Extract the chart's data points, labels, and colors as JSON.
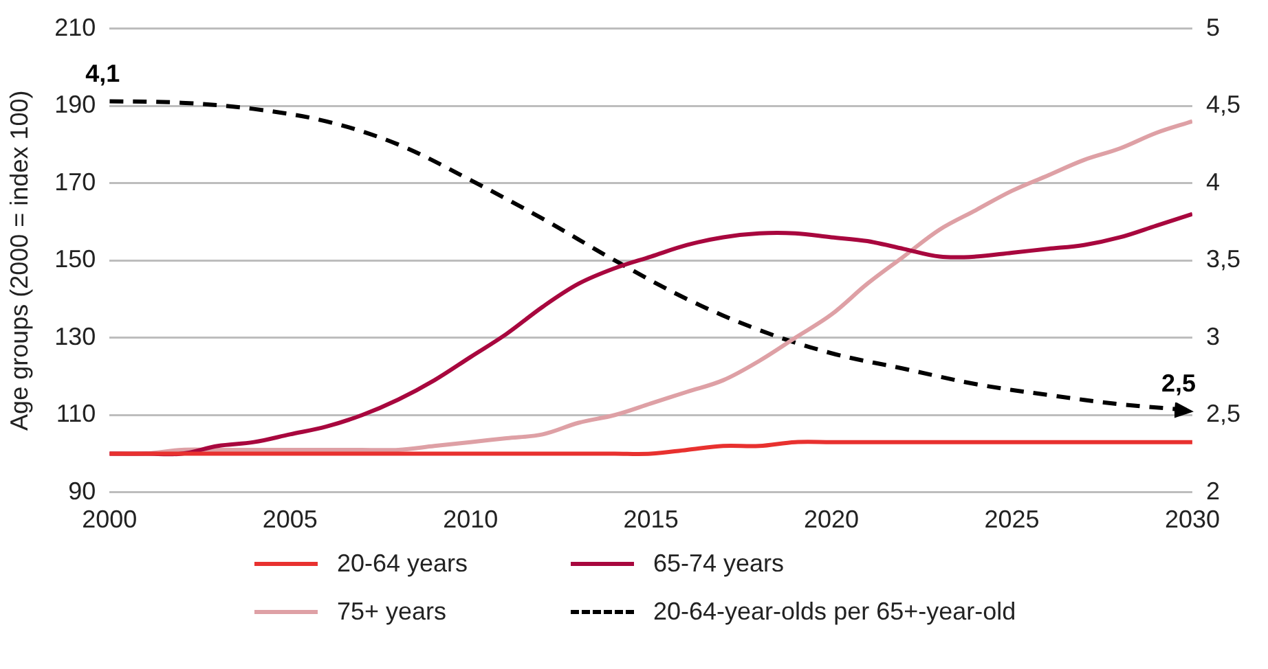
{
  "chart_data": {
    "type": "line",
    "ylabel": "Age groups (2000 = index 100)",
    "x": [
      2000,
      2001,
      2002,
      2003,
      2004,
      2005,
      2006,
      2007,
      2008,
      2009,
      2010,
      2011,
      2012,
      2013,
      2014,
      2015,
      2016,
      2017,
      2018,
      2019,
      2020,
      2021,
      2022,
      2023,
      2024,
      2025,
      2026,
      2027,
      2028,
      2029,
      2030
    ],
    "xlim": [
      2000,
      2030
    ],
    "xticks": [
      2000,
      2005,
      2010,
      2015,
      2020,
      2025,
      2030
    ],
    "ylim": [
      90,
      210
    ],
    "yticks": [
      90,
      110,
      130,
      150,
      170,
      190,
      210
    ],
    "y2lim": [
      2,
      5
    ],
    "y2ticks": [
      2,
      {
        "value": 2.5,
        "label": "2,5"
      },
      3,
      {
        "value": 3.5,
        "label": "3,5"
      },
      4,
      {
        "value": 4.5,
        "label": "4,5"
      },
      5
    ],
    "grid": "y",
    "legend": "bottom",
    "marker": "none",
    "annotations": [
      "4,1",
      "2,5"
    ],
    "series": [
      {
        "name": "20-64 years",
        "color": "#e8312f",
        "values": [
          100,
          100,
          100,
          100,
          100,
          100,
          100,
          100,
          100,
          100,
          100,
          100,
          100,
          100,
          100,
          100,
          101,
          102,
          102,
          103,
          103,
          103,
          103,
          103,
          103,
          103,
          103,
          103,
          103,
          103,
          103
        ]
      },
      {
        "name": "65-74 years",
        "color": "#a8073e",
        "values": [
          100,
          100,
          100,
          102,
          103,
          105,
          107,
          110,
          114,
          119,
          125,
          131,
          138,
          144,
          148,
          151,
          154,
          156,
          157,
          157,
          156,
          155,
          153,
          151,
          151,
          152,
          153,
          154,
          156,
          159,
          162
        ]
      },
      {
        "name": "75+ years",
        "color": "#dea0a5",
        "values": [
          100,
          100,
          101,
          101,
          101,
          101,
          101,
          101,
          101,
          102,
          103,
          104,
          105,
          108,
          110,
          113,
          116,
          119,
          124,
          130,
          136,
          144,
          151,
          158,
          163,
          168,
          172,
          176,
          179,
          183,
          186
        ]
      },
      {
        "name": "20-64-year-olds per 65+-year-old",
        "color": "#000000",
        "axis": "y2",
        "line_style": "dashed",
        "x": [
          2000,
          2002,
          2004,
          2006,
          2008,
          2010,
          2012,
          2014,
          2016,
          2018,
          2020,
          2022,
          2024,
          2026,
          2028,
          2030
        ],
        "values": [
          4.53,
          4.52,
          4.48,
          4.4,
          4.25,
          4.02,
          3.77,
          3.5,
          3.25,
          3.05,
          2.9,
          2.8,
          2.7,
          2.63,
          2.57,
          2.53
        ]
      }
    ]
  }
}
